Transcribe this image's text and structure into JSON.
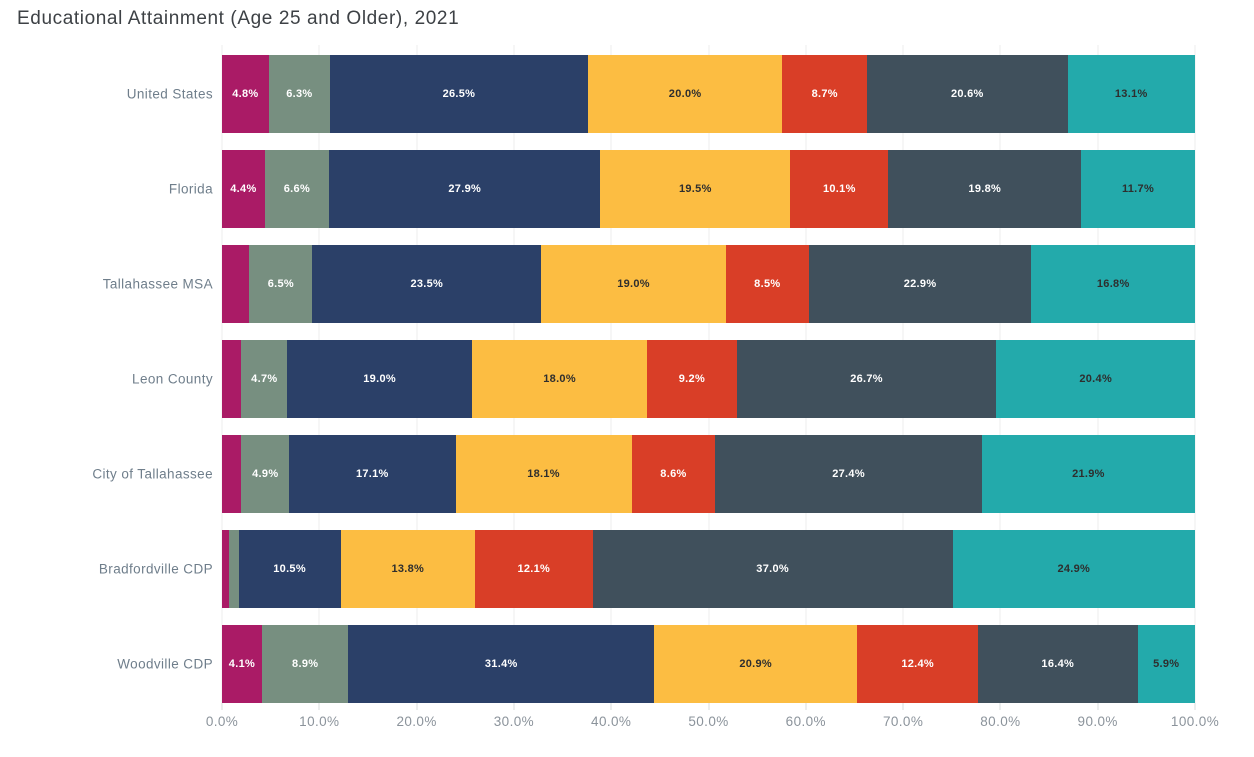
{
  "title": "Educational Attainment (Age 25 and Older), 2021",
  "chart_data": {
    "type": "bar",
    "subtype": "horizontal-stacked",
    "title": "Educational Attainment (Age 25 and Older), 2021",
    "unit": "%",
    "categories": [
      "United States",
      "Florida",
      "Tallahassee MSA",
      "Leon County",
      "City of Tallahassee",
      "Bradfordville CDP",
      "Woodville CDP"
    ],
    "series": [
      {
        "name": "segment-1-magenta",
        "color": "#aa1b66",
        "label_text_color": "#ffffff",
        "values": [
          4.8,
          4.4,
          2.8,
          2.0,
          2.0,
          0.7,
          4.1
        ]
      },
      {
        "name": "segment-2-sage",
        "color": "#778f80",
        "label_text_color": "#ffffff",
        "values": [
          6.3,
          6.6,
          6.5,
          4.7,
          4.9,
          1.0,
          8.9
        ]
      },
      {
        "name": "segment-3-navy",
        "color": "#2b4068",
        "label_text_color": "#ffffff",
        "values": [
          26.5,
          27.9,
          23.5,
          19.0,
          17.1,
          10.5,
          31.4
        ]
      },
      {
        "name": "segment-4-amber",
        "color": "#fcbd42",
        "label_text_color": "#2e2e2e",
        "values": [
          20.0,
          19.5,
          19.0,
          18.0,
          18.1,
          13.8,
          20.9
        ]
      },
      {
        "name": "segment-5-red",
        "color": "#d93e27",
        "label_text_color": "#ffffff",
        "values": [
          8.7,
          10.1,
          8.5,
          9.2,
          8.6,
          12.1,
          12.4
        ]
      },
      {
        "name": "segment-6-slate",
        "color": "#40505c",
        "label_text_color": "#ffffff",
        "values": [
          20.6,
          19.8,
          22.9,
          26.7,
          27.4,
          37.0,
          16.4
        ]
      },
      {
        "name": "segment-7-teal",
        "color": "#23aaab",
        "label_text_color": "#2e2e2e",
        "values": [
          13.1,
          11.7,
          16.8,
          20.4,
          21.9,
          24.9,
          5.9
        ]
      }
    ],
    "label_min_value": 4.0,
    "x_axis": {
      "min": 0,
      "max": 100,
      "tick_step": 10,
      "ticks": [
        "0.0%",
        "10.0%",
        "20.0%",
        "30.0%",
        "40.0%",
        "50.0%",
        "60.0%",
        "70.0%",
        "80.0%",
        "90.0%",
        "100.0%"
      ],
      "grid": true
    },
    "legend": "none",
    "colors": {
      "title_text": "#3d4145",
      "row_label_text": "#6f7e8b",
      "axis_label_text": "#8b939b",
      "gridline": "#ededee",
      "background": "#ffffff"
    }
  }
}
